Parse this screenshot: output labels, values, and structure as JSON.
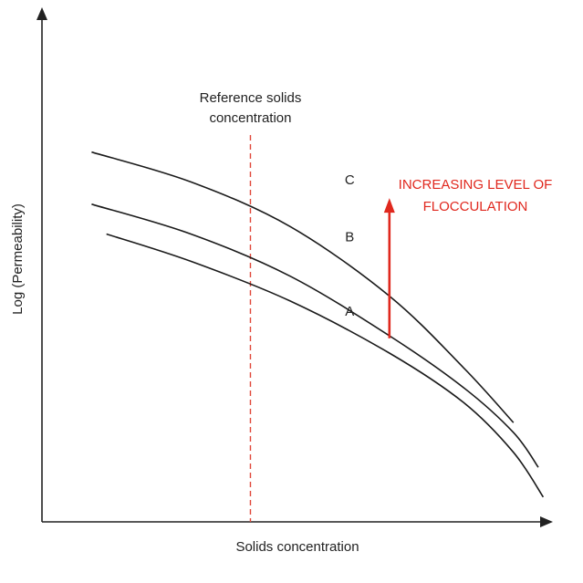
{
  "chart_data": {
    "type": "line",
    "title": "",
    "xlabel": "Solids concentration",
    "ylabel": "Log (Permeability)",
    "xlim": [
      0,
      1
    ],
    "ylim": [
      0,
      1
    ],
    "grid": false,
    "x_ticks": [],
    "y_ticks": [],
    "series": [
      {
        "name": "C",
        "x": [
          0.1,
          0.3,
          0.5,
          0.7,
          0.85,
          0.95
        ],
        "y": [
          0.745,
          0.685,
          0.595,
          0.455,
          0.31,
          0.2
        ]
      },
      {
        "name": "B",
        "x": [
          0.1,
          0.3,
          0.5,
          0.7,
          0.85,
          0.95,
          1.0
        ],
        "y": [
          0.64,
          0.58,
          0.495,
          0.375,
          0.27,
          0.18,
          0.11
        ]
      },
      {
        "name": "A",
        "x": [
          0.13,
          0.3,
          0.5,
          0.7,
          0.85,
          0.95,
          1.01
        ],
        "y": [
          0.58,
          0.525,
          0.445,
          0.34,
          0.24,
          0.14,
          0.05
        ]
      }
    ],
    "reference_line": {
      "x": 0.42,
      "label": [
        "Reference solids",
        "concentration"
      ],
      "color": "#e0483a"
    },
    "annotation": {
      "text": [
        "INCREASING LEVEL OF",
        "FLOCCULATION"
      ],
      "arrow_x": 0.7,
      "arrow_from_y": 0.37,
      "arrow_to_y": 0.645,
      "color": "#e0281e"
    },
    "colors": {
      "curves": "#1a1a1a",
      "axes": "#222222"
    }
  }
}
